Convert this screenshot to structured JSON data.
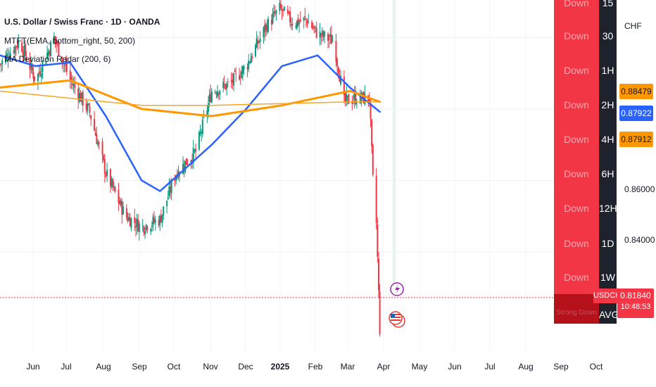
{
  "header": {
    "title": "U.S. Dollar / Swiss Franc · 1D · OANDA",
    "indicator_1": "MTFT(EMA, bottom_right, 50, 200)",
    "indicator_2": "MA Deviation Radar (200, 6)"
  },
  "mtf_table": {
    "rows": [
      {
        "status": "Down",
        "tf": "15"
      },
      {
        "status": "Down",
        "tf": "30"
      },
      {
        "status": "Down",
        "tf": "1H"
      },
      {
        "status": "Down",
        "tf": "2H"
      },
      {
        "status": "Down",
        "tf": "4H"
      },
      {
        "status": "Down",
        "tf": "6H"
      },
      {
        "status": "Down",
        "tf": "12H"
      },
      {
        "status": "Down",
        "tf": "1D"
      },
      {
        "status": "Down",
        "tf": "1W"
      },
      {
        "status": "Strong Down",
        "tf": "AVG"
      }
    ]
  },
  "price_axis": {
    "currency": "CHF",
    "labels": [
      "0.86000",
      "0.84000"
    ],
    "tags": [
      {
        "value": "0.88479",
        "color": "#ff9800"
      },
      {
        "value": "0.87922",
        "color": "#2962ff"
      },
      {
        "value": "0.87912",
        "color": "#ff9800"
      }
    ],
    "symbol": "USDCHF",
    "last_price": "0.81840",
    "countdown": "10:48:53"
  },
  "time_axis": {
    "labels": [
      {
        "text": "Jun",
        "bold": false
      },
      {
        "text": "Jul",
        "bold": false
      },
      {
        "text": "Aug",
        "bold": false
      },
      {
        "text": "Sep",
        "bold": false
      },
      {
        "text": "Oct",
        "bold": false
      },
      {
        "text": "Nov",
        "bold": false
      },
      {
        "text": "Dec",
        "bold": false
      },
      {
        "text": "2025",
        "bold": true
      },
      {
        "text": "Feb",
        "bold": false
      },
      {
        "text": "Mar",
        "bold": false
      },
      {
        "text": "Apr",
        "bold": false
      },
      {
        "text": "May",
        "bold": false
      },
      {
        "text": "Jun",
        "bold": false
      },
      {
        "text": "Jul",
        "bold": false
      },
      {
        "text": "Aug",
        "bold": false
      },
      {
        "text": "Sep",
        "bold": false
      },
      {
        "text": "Oct",
        "bold": false
      }
    ]
  },
  "colors": {
    "up": "#089981",
    "down": "#f23645",
    "ema50": "#2962ff",
    "ema200": "#ff9800",
    "ema200_htf": "#f5a623"
  },
  "chart_data": {
    "type": "candlestick",
    "title": "U.S. Dollar / Swiss Franc · 1D · OANDA",
    "ylim": [
      0.812,
      0.9105
    ],
    "x_range": [
      "2024-05-15",
      "2025-10-15"
    ],
    "series": [
      {
        "name": "USDCHF close",
        "x": [
          "2024-05-15",
          "2024-06-01",
          "2024-06-15",
          "2024-07-01",
          "2024-07-15",
          "2024-08-01",
          "2024-08-15",
          "2024-09-01",
          "2024-09-15",
          "2024-10-01",
          "2024-10-15",
          "2024-11-01",
          "2024-11-15",
          "2024-12-01",
          "2024-12-15",
          "2025-01-01",
          "2025-01-13",
          "2025-01-25",
          "2025-02-05",
          "2025-02-15",
          "2025-03-01",
          "2025-03-10",
          "2025-03-20",
          "2025-04-01",
          "2025-04-04",
          "2025-04-07",
          "2025-04-10"
        ],
        "y": [
          0.8925,
          0.899,
          0.888,
          0.9,
          0.888,
          0.879,
          0.862,
          0.85,
          0.847,
          0.849,
          0.862,
          0.868,
          0.885,
          0.887,
          0.892,
          0.903,
          0.908,
          0.904,
          0.905,
          0.901,
          0.899,
          0.882,
          0.883,
          0.883,
          0.86,
          0.848,
          0.8184
        ]
      },
      {
        "name": "EMA 50",
        "x": [
          "2024-05-15",
          "2024-06-15",
          "2024-07-15",
          "2024-08-15",
          "2024-09-15",
          "2024-10-01",
          "2024-10-15",
          "2024-11-15",
          "2024-12-15",
          "2025-01-15",
          "2025-02-15",
          "2025-03-15",
          "2025-04-10"
        ],
        "y": [
          0.895,
          0.892,
          0.893,
          0.878,
          0.86,
          0.857,
          0.861,
          0.87,
          0.88,
          0.892,
          0.895,
          0.886,
          0.8792
        ]
      },
      {
        "name": "EMA 200",
        "x": [
          "2024-05-15",
          "2024-07-15",
          "2024-09-15",
          "2024-11-15",
          "2025-01-15",
          "2025-03-15",
          "2025-04-10"
        ],
        "y": [
          0.886,
          0.888,
          0.88,
          0.878,
          0.881,
          0.885,
          0.882
        ]
      },
      {
        "name": "EMA 200 HTF",
        "x": [
          "2024-05-15",
          "2024-07-15",
          "2024-09-15",
          "2024-11-15",
          "2025-01-15",
          "2025-03-15",
          "2025-04-10"
        ],
        "y": [
          0.885,
          0.883,
          0.881,
          0.881,
          0.8815,
          0.882,
          0.882
        ]
      }
    ]
  }
}
